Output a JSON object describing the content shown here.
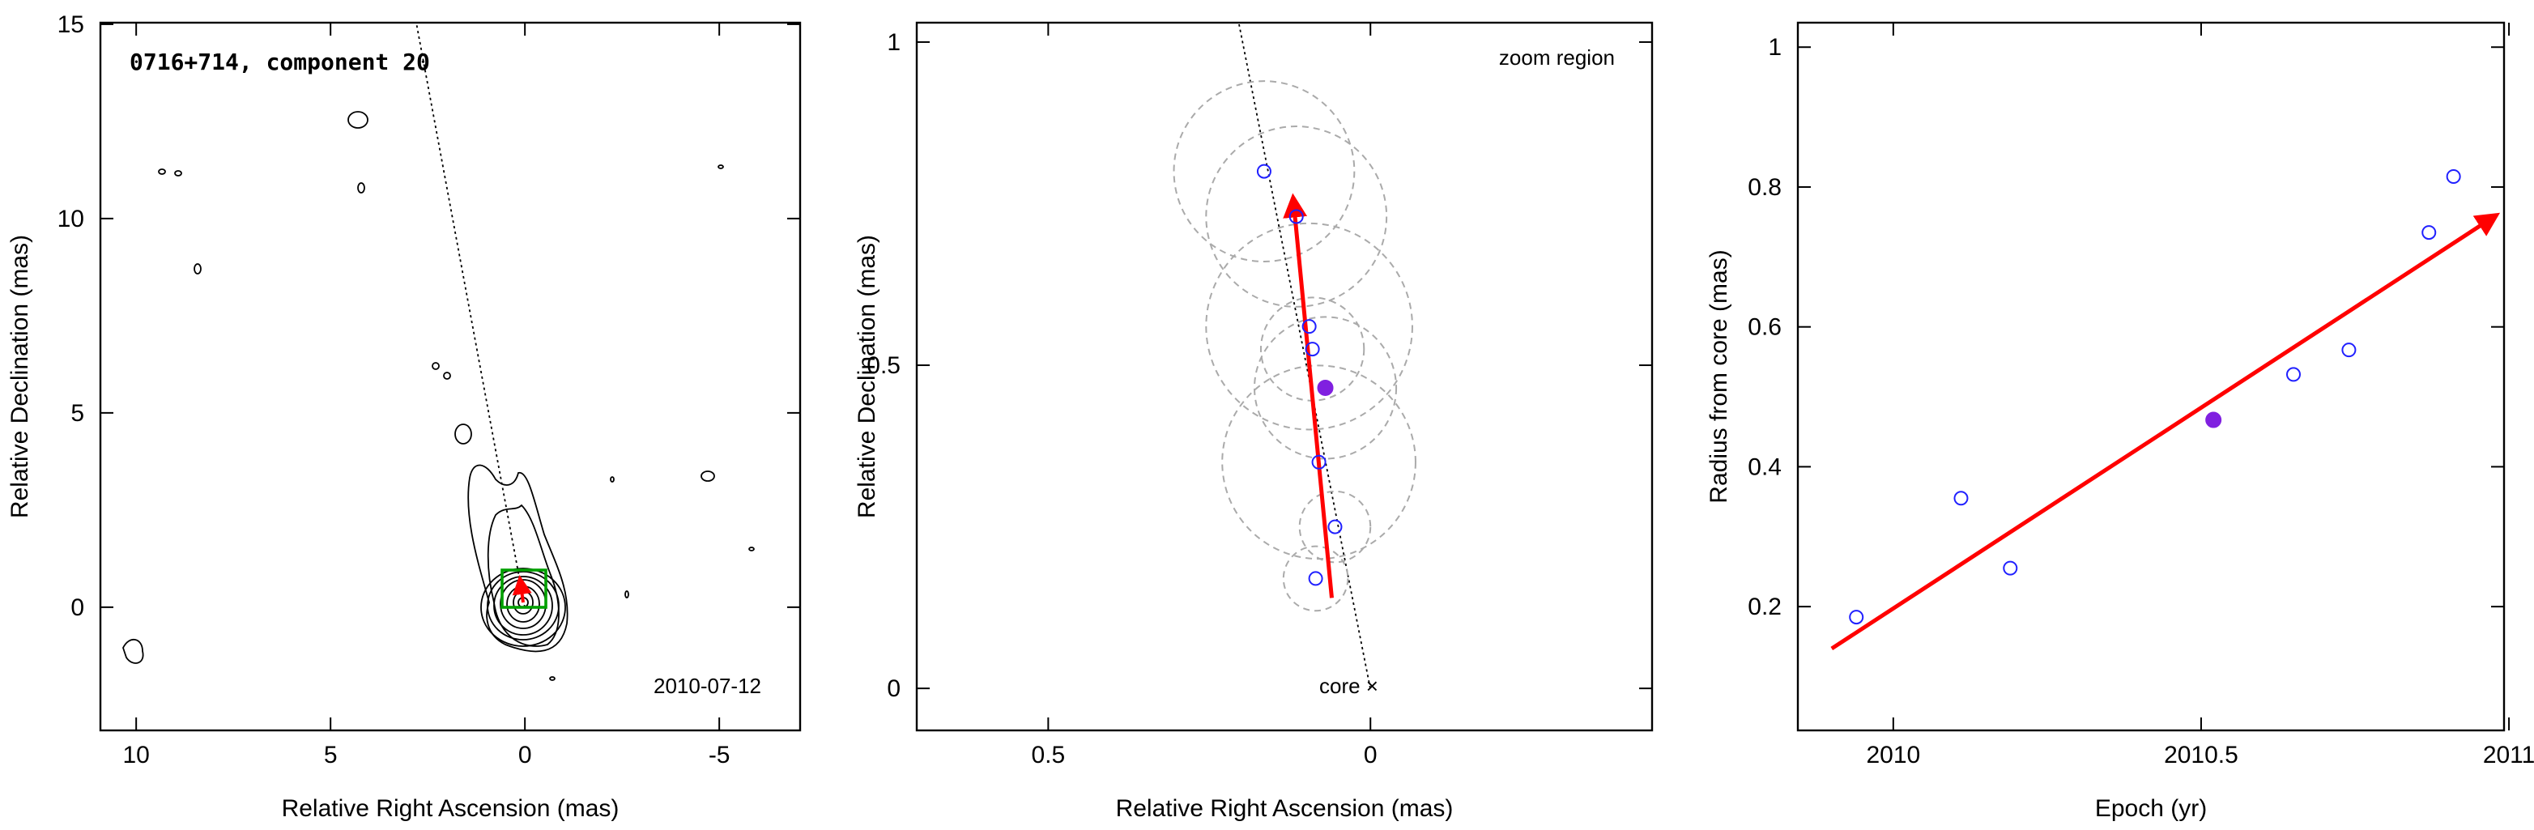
{
  "chart_data": [
    {
      "type": "image",
      "annotations": [
        "0716+714, component 20",
        "2010-07-12"
      ],
      "xlabel": "Relative Right Ascension (mas)",
      "ylabel": "Relative Declination (mas)",
      "xlim": [
        10.92,
        -7.08
      ],
      "ylim": [
        -3.17,
        15.04
      ],
      "xticks": [
        10,
        5,
        0,
        -5
      ],
      "yticks": [
        0,
        5,
        10,
        15
      ]
    },
    {
      "type": "scatter",
      "annotations": [
        "zoom region",
        "core ×"
      ],
      "xlabel": "Relative Right Ascension (mas)",
      "ylabel": "Relative Declination (mas)",
      "xlim": [
        0.704,
        -0.437
      ],
      "ylim": [
        -0.065,
        1.03
      ],
      "xticks": [
        0.5,
        0
      ],
      "yticks": [
        0,
        0.5,
        1
      ],
      "series": [
        {
          "color": "#2020ff",
          "filled": false,
          "x": [
            0.165,
            0.115,
            0.095,
            0.09,
            0.08,
            0.055,
            0.085
          ],
          "values": [
            0.8,
            0.73,
            0.56,
            0.525,
            0.35,
            0.25,
            0.17
          ],
          "radii": [
            0.14,
            0.14,
            0.16,
            0.08,
            0.15,
            0.055,
            0.05
          ]
        },
        {
          "color": "#8020e0",
          "filled": true,
          "x": [
            0.07
          ],
          "values": [
            0.465
          ],
          "radii": [
            0.11
          ]
        }
      ],
      "arrow": {
        "color": "#ff0000",
        "x": [
          0.06,
          0.12
        ],
        "y": [
          0.14,
          0.76
        ]
      }
    },
    {
      "type": "scatter",
      "xlabel": "Epoch (yr)",
      "ylabel": "Radius from core (mas)",
      "xlim": [
        2009.845,
        2010.992
      ],
      "ylim": [
        0.023,
        1.035
      ],
      "xticks": [
        2010,
        2010.5,
        2011
      ],
      "yticks": [
        0.2,
        0.4,
        0.6,
        0.8,
        1
      ],
      "series": [
        {
          "color": "#2020ff",
          "filled": false,
          "x": [
            2009.94,
            2010.11,
            2010.19,
            2010.65,
            2010.74,
            2010.87,
            2010.91
          ],
          "values": [
            0.185,
            0.355,
            0.255,
            0.532,
            0.567,
            0.735,
            0.815
          ]
        },
        {
          "color": "#8020e0",
          "filled": true,
          "x": [
            2010.52
          ],
          "values": [
            0.467
          ]
        }
      ],
      "arrow": {
        "color": "#ff0000",
        "x": [
          2009.9,
          2010.98
        ],
        "y": [
          0.14,
          0.76
        ]
      }
    }
  ]
}
